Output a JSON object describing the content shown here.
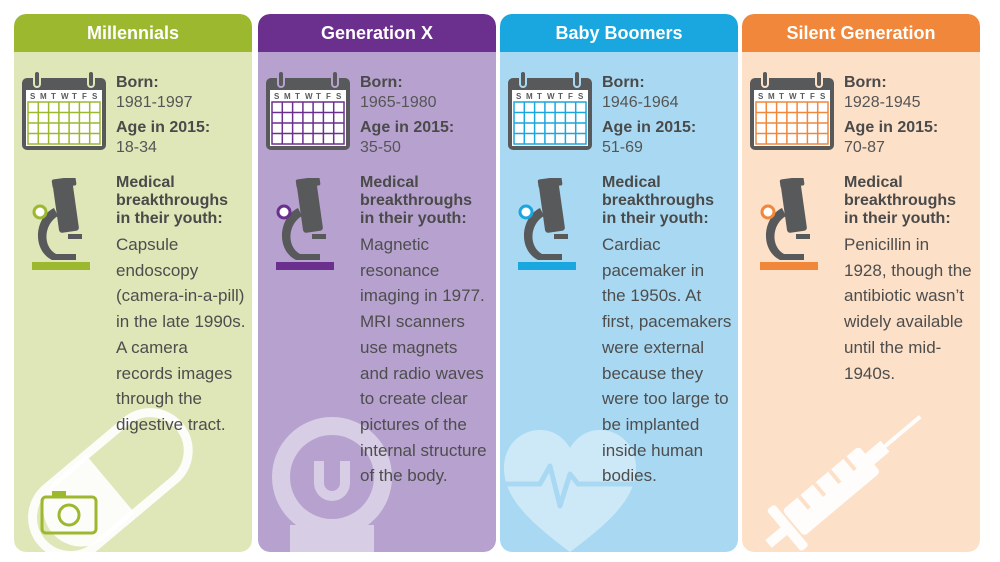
{
  "generations": [
    {
      "title": "Millennials",
      "born_label": "Born:",
      "born": "1981-1997",
      "age_label": "Age in 2015:",
      "age": "18-34",
      "med_label": "Medical breakthroughs in their youth:",
      "description": "Capsule endoscopy (camera-in-a-pill) in the late 1990s. A camera records images through the digestive tract.",
      "accent": "#9cb82f",
      "background": "#dfe6b8",
      "icon": "capsule-camera-icon"
    },
    {
      "title": "Generation X",
      "born_label": "Born:",
      "born": "1965-1980",
      "age_label": "Age in 2015:",
      "age": "35-50",
      "med_label": "Medical breakthroughs in their youth:",
      "description": "Magnetic resonance imaging in 1977. MRI scanners use magnets and radio waves to create clear pictures of the internal structure of the body.",
      "accent": "#6b2f8e",
      "background": "#b7a2cf",
      "icon": "mri-magnet-icon"
    },
    {
      "title": "Baby Boomers",
      "born_label": "Born:",
      "born": "1946-1964",
      "age_label": "Age in 2015:",
      "age": "51-69",
      "med_label": "Medical breakthroughs in their youth:",
      "description": "Cardiac pacemaker in the 1950s. At first, pacemakers were external because they were too large to be implanted inside human bodies.",
      "accent": "#1aa6de",
      "background": "#a9d9f2",
      "icon": "heart-pulse-icon"
    },
    {
      "title": "Silent Generation",
      "born_label": "Born:",
      "born": "1928-1945",
      "age_label": "Age in 2015:",
      "age": "70-87",
      "med_label": "Medical breakthroughs in their youth:",
      "description": "Penicillin in 1928, though the antibiotic wasn’t widely available until the mid-1940s.",
      "accent": "#f0873a",
      "background": "#fce0c8",
      "icon": "syringe-icon"
    }
  ],
  "calendar_days": [
    "S",
    "M",
    "T",
    "W",
    "T",
    "F",
    "S"
  ]
}
